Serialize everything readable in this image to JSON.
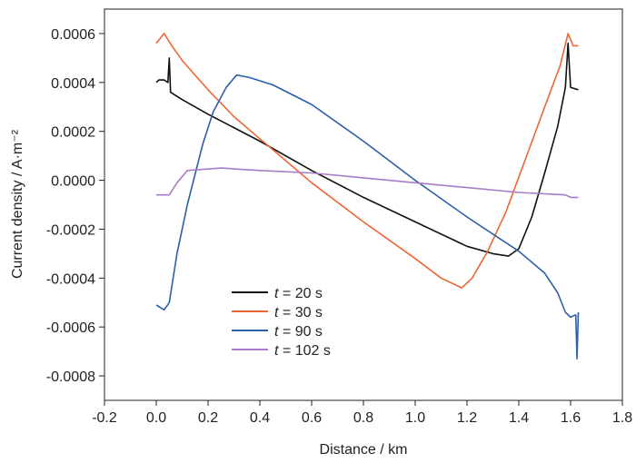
{
  "chart_data": {
    "type": "line",
    "xlabel": "Distance / km",
    "ylabel": "Current density / A·m⁻²",
    "xlim": [
      -0.2,
      1.8
    ],
    "ylim": [
      -0.0009,
      0.0007
    ],
    "xticks": [
      "-0.2",
      "0.0",
      "0.2",
      "0.4",
      "0.6",
      "0.8",
      "1.0",
      "1.2",
      "1.4",
      "1.6",
      "1.8"
    ],
    "yticks": [
      "0.0006",
      "0.0004",
      "0.0002",
      "0.0000",
      "-0.0002",
      "-0.0004",
      "-0.0006",
      "-0.0008"
    ],
    "grid": false,
    "legend_position": "lower-left",
    "series": [
      {
        "name": "t = 20 s",
        "legend": {
          "var": "t",
          "rest": " = 20 s"
        },
        "color": "#111111",
        "points": [
          [
            0.0,
            0.0004
          ],
          [
            0.01,
            0.00041
          ],
          [
            0.03,
            0.00041
          ],
          [
            0.045,
            0.0004
          ],
          [
            0.05,
            0.0005
          ],
          [
            0.055,
            0.00036
          ],
          [
            0.1,
            0.00033
          ],
          [
            0.2,
            0.00027
          ],
          [
            0.4,
            0.00016
          ],
          [
            0.6,
            4e-05
          ],
          [
            0.8,
            -7e-05
          ],
          [
            1.0,
            -0.00017
          ],
          [
            1.2,
            -0.00027
          ],
          [
            1.3,
            -0.0003
          ],
          [
            1.36,
            -0.00031
          ],
          [
            1.4,
            -0.00028
          ],
          [
            1.45,
            -0.00015
          ],
          [
            1.5,
            3e-05
          ],
          [
            1.55,
            0.00022
          ],
          [
            1.58,
            0.00038
          ],
          [
            1.59,
            0.00056
          ],
          [
            1.6,
            0.00038
          ],
          [
            1.63,
            0.00037
          ]
        ]
      },
      {
        "name": "t = 30 s",
        "legend": {
          "var": "t",
          "rest": " = 30 s"
        },
        "color": "#ee6633",
        "points": [
          [
            0.0,
            0.00056
          ],
          [
            0.03,
            0.0006
          ],
          [
            0.06,
            0.00055
          ],
          [
            0.1,
            0.00049
          ],
          [
            0.2,
            0.00037
          ],
          [
            0.3,
            0.00026
          ],
          [
            0.4,
            0.00017
          ],
          [
            0.5,
            8e-05
          ],
          [
            0.6,
            -1e-05
          ],
          [
            0.8,
            -0.00017
          ],
          [
            1.0,
            -0.00032
          ],
          [
            1.1,
            -0.0004
          ],
          [
            1.18,
            -0.00044
          ],
          [
            1.22,
            -0.0004
          ],
          [
            1.28,
            -0.00029
          ],
          [
            1.35,
            -0.00013
          ],
          [
            1.42,
            7e-05
          ],
          [
            1.5,
            0.0003
          ],
          [
            1.56,
            0.00047
          ],
          [
            1.59,
            0.0006
          ],
          [
            1.61,
            0.00055
          ],
          [
            1.63,
            0.00055
          ]
        ]
      },
      {
        "name": "t = 90 s",
        "legend": {
          "var": "t",
          "rest": " = 90 s"
        },
        "color": "#2b5fa8",
        "points": [
          [
            0.0,
            -0.00051
          ],
          [
            0.03,
            -0.00053
          ],
          [
            0.05,
            -0.0005
          ],
          [
            0.08,
            -0.0003
          ],
          [
            0.12,
            -0.0001
          ],
          [
            0.18,
            0.00015
          ],
          [
            0.22,
            0.00028
          ],
          [
            0.27,
            0.00038
          ],
          [
            0.31,
            0.00043
          ],
          [
            0.36,
            0.00042
          ],
          [
            0.45,
            0.00039
          ],
          [
            0.6,
            0.00031
          ],
          [
            0.8,
            0.00016
          ],
          [
            1.0,
            0.0
          ],
          [
            1.2,
            -0.00015
          ],
          [
            1.4,
            -0.00029
          ],
          [
            1.5,
            -0.00038
          ],
          [
            1.55,
            -0.00046
          ],
          [
            1.58,
            -0.00054
          ],
          [
            1.6,
            -0.00056
          ],
          [
            1.62,
            -0.00055
          ],
          [
            1.625,
            -0.00073
          ],
          [
            1.63,
            -0.00054
          ]
        ]
      },
      {
        "name": "t = 102 s",
        "legend": {
          "var": "t",
          "rest": " = 102 s"
        },
        "color": "#a97cc9",
        "points": [
          [
            0.0,
            -6e-05
          ],
          [
            0.05,
            -6e-05
          ],
          [
            0.08,
            -1e-05
          ],
          [
            0.12,
            4e-05
          ],
          [
            0.25,
            5e-05
          ],
          [
            0.4,
            4e-05
          ],
          [
            0.6,
            3e-05
          ],
          [
            0.8,
            1e-05
          ],
          [
            1.0,
            -1e-05
          ],
          [
            1.2,
            -3e-05
          ],
          [
            1.4,
            -5e-05
          ],
          [
            1.58,
            -6e-05
          ],
          [
            1.6,
            -7e-05
          ],
          [
            1.63,
            -7e-05
          ]
        ]
      }
    ]
  }
}
